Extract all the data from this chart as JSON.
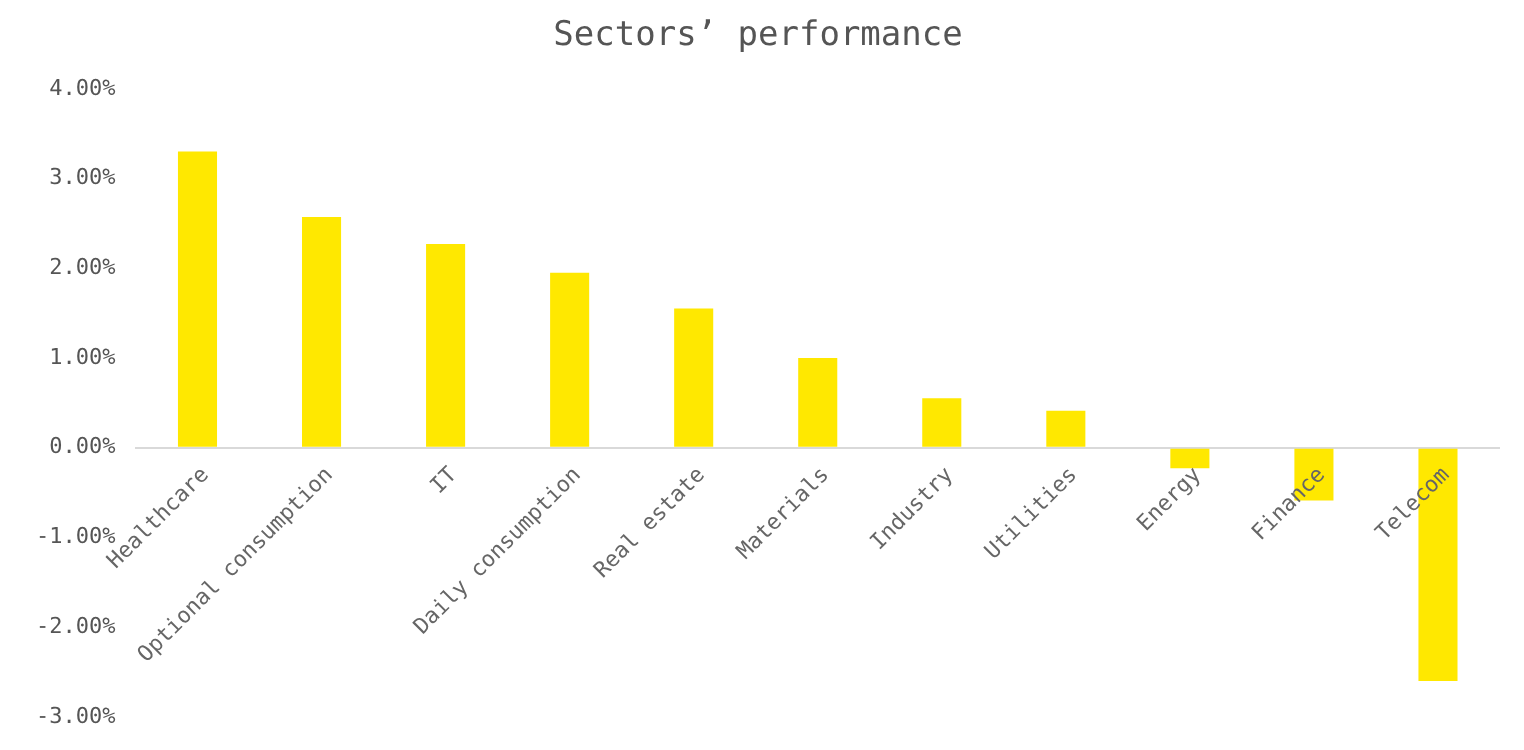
{
  "chart_data": {
    "type": "bar",
    "title": "Sectors’ performance",
    "categories": [
      "Healthcare",
      "Optional consumption",
      "IT",
      "Daily consumption",
      "Real estate",
      "Materials",
      "Industry",
      "Utilities",
      "Energy",
      "Finance",
      "Telecom"
    ],
    "values": [
      3.3,
      2.57,
      2.27,
      1.95,
      1.55,
      1.0,
      0.55,
      0.41,
      -0.23,
      -0.59,
      -2.6
    ],
    "color": "#ffe800",
    "ylim": [
      -3,
      4
    ],
    "yticks": [
      {
        "value": -3,
        "label": "-3.00%"
      },
      {
        "value": -2,
        "label": "-2.00%"
      },
      {
        "value": -1,
        "label": "-1.00%"
      },
      {
        "value": 0,
        "label": "0.00%"
      },
      {
        "value": 1,
        "label": "1.00%"
      },
      {
        "value": 2,
        "label": "2.00%"
      },
      {
        "value": 3,
        "label": "3.00%"
      },
      {
        "value": 4,
        "label": "4.00%"
      }
    ],
    "grid": false,
    "legend": false
  }
}
